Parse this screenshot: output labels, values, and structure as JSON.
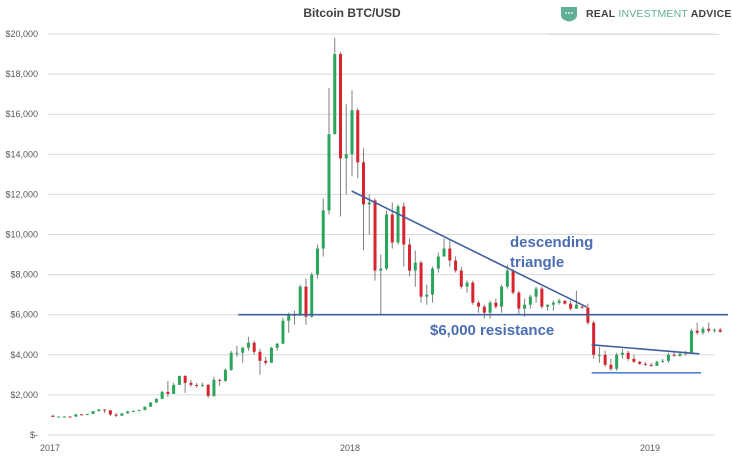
{
  "logo": {
    "text_part1": "REAL",
    "text_part2": "INVESTMENT",
    "text_part3": "ADVICE",
    "icon": "shield-icon"
  },
  "colors": {
    "up": "#2aa55c",
    "down": "#d9232e",
    "wick": "#7f7f7f",
    "annotation": "#4a6db3",
    "grid": "#d9d9d9"
  },
  "chart_data": {
    "type": "candlestick",
    "title": "Bitcoin BTC/USD",
    "ylim": [
      0,
      20000
    ],
    "y_ticks": [
      0,
      2000,
      4000,
      6000,
      8000,
      10000,
      12000,
      14000,
      16000,
      18000,
      20000
    ],
    "y_tick_labels": [
      "$-",
      "$2,000",
      "$4,000",
      "$6,000",
      "$8,000",
      "$10,000",
      "$12,000",
      "$14,000",
      "$16,000",
      "$18,000",
      "$20,000"
    ],
    "x_ticks": [
      "2017-01-01",
      "2018-01-01",
      "2019-01-01"
    ],
    "x_tick_labels": [
      "2017",
      "2018",
      "2019"
    ],
    "grid": "horizontal",
    "candle_fields": [
      "week",
      "open",
      "high",
      "low",
      "close"
    ],
    "candles": [
      [
        "2017-01-02",
        960,
        1010,
        900,
        905
      ],
      [
        "2017-01-09",
        905,
        930,
        880,
        920
      ],
      [
        "2017-01-16",
        920,
        940,
        890,
        920
      ],
      [
        "2017-01-23",
        920,
        930,
        900,
        915
      ],
      [
        "2017-01-30",
        915,
        1040,
        915,
        1030
      ],
      [
        "2017-02-06",
        1030,
        1060,
        990,
        1000
      ],
      [
        "2017-02-13",
        1000,
        1060,
        990,
        1050
      ],
      [
        "2017-02-20",
        1050,
        1200,
        1050,
        1190
      ],
      [
        "2017-02-27",
        1190,
        1290,
        1180,
        1270
      ],
      [
        "2017-03-06",
        1270,
        1280,
        1100,
        1230
      ],
      [
        "2017-03-13",
        1230,
        1250,
        950,
        1020
      ],
      [
        "2017-03-20",
        1020,
        1100,
        890,
        960
      ],
      [
        "2017-03-27",
        960,
        1090,
        960,
        1080
      ],
      [
        "2017-04-03",
        1080,
        1200,
        1060,
        1180
      ],
      [
        "2017-04-10",
        1180,
        1220,
        1160,
        1200
      ],
      [
        "2017-04-17",
        1200,
        1260,
        1190,
        1240
      ],
      [
        "2017-04-24",
        1240,
        1420,
        1240,
        1410
      ],
      [
        "2017-05-01",
        1410,
        1640,
        1400,
        1620
      ],
      [
        "2017-05-08",
        1620,
        1850,
        1600,
        1800
      ],
      [
        "2017-05-15",
        1800,
        2200,
        1790,
        2150
      ],
      [
        "2017-05-22",
        2150,
        2700,
        1900,
        2050
      ],
      [
        "2017-05-29",
        2050,
        2600,
        2050,
        2500
      ],
      [
        "2017-06-05",
        2500,
        2950,
        2500,
        2950
      ],
      [
        "2017-06-12",
        2950,
        2980,
        2100,
        2600
      ],
      [
        "2017-06-19",
        2600,
        2750,
        2400,
        2500
      ],
      [
        "2017-06-26",
        2500,
        2600,
        2350,
        2450
      ],
      [
        "2017-07-03",
        2450,
        2600,
        2400,
        2500
      ],
      [
        "2017-07-10",
        2500,
        2550,
        1850,
        1950
      ],
      [
        "2017-07-17",
        1950,
        2900,
        1900,
        2750
      ],
      [
        "2017-07-24",
        2750,
        2800,
        2450,
        2700
      ],
      [
        "2017-07-31",
        2700,
        3300,
        2650,
        3250
      ],
      [
        "2017-08-07",
        3250,
        4200,
        3200,
        4100
      ],
      [
        "2017-08-14",
        4100,
        4450,
        3900,
        4100
      ],
      [
        "2017-08-21",
        4100,
        4400,
        3600,
        4350
      ],
      [
        "2017-08-28",
        4350,
        4900,
        4200,
        4600
      ],
      [
        "2017-09-04",
        4600,
        4700,
        4000,
        4150
      ],
      [
        "2017-09-11",
        4150,
        4300,
        3000,
        3700
      ],
      [
        "2017-09-18",
        3700,
        3900,
        3500,
        3600
      ],
      [
        "2017-09-25",
        3600,
        4400,
        3600,
        4350
      ],
      [
        "2017-10-02",
        4350,
        4600,
        4200,
        4550
      ],
      [
        "2017-10-09",
        4550,
        5850,
        4550,
        5700
      ],
      [
        "2017-10-16",
        5700,
        6100,
        5100,
        6000
      ],
      [
        "2017-10-23",
        6000,
        6200,
        5500,
        5950
      ],
      [
        "2017-10-30",
        5950,
        7500,
        5950,
        7400
      ],
      [
        "2017-11-06",
        7400,
        7800,
        5500,
        5900
      ],
      [
        "2017-11-13",
        5900,
        8100,
        5850,
        8000
      ],
      [
        "2017-11-20",
        8000,
        9500,
        7800,
        9300
      ],
      [
        "2017-11-27",
        9300,
        11800,
        8900,
        11200
      ],
      [
        "2017-12-04",
        11200,
        17300,
        11000,
        15000
      ],
      [
        "2017-12-11",
        15000,
        19800,
        15000,
        19000
      ],
      [
        "2017-12-18",
        19000,
        19100,
        10900,
        13800
      ],
      [
        "2017-12-25",
        13800,
        16500,
        12000,
        14000
      ],
      [
        "2018-01-01",
        14000,
        17200,
        12900,
        16200
      ],
      [
        "2018-01-08",
        16200,
        16300,
        12800,
        13600
      ],
      [
        "2018-01-15",
        13600,
        14300,
        9200,
        11500
      ],
      [
        "2018-01-22",
        11500,
        12000,
        10000,
        11600
      ],
      [
        "2018-01-29",
        11700,
        11800,
        7700,
        8200
      ],
      [
        "2018-02-05",
        8200,
        9000,
        6000,
        8300
      ],
      [
        "2018-02-12",
        8300,
        11200,
        8200,
        11000
      ],
      [
        "2018-02-19",
        11000,
        11600,
        9300,
        9600
      ],
      [
        "2018-02-26",
        9600,
        11500,
        9500,
        11400
      ],
      [
        "2018-03-05",
        11400,
        11600,
        8400,
        9500
      ],
      [
        "2018-03-12",
        9500,
        9800,
        7900,
        8200
      ],
      [
        "2018-03-19",
        8200,
        9200,
        7400,
        8600
      ],
      [
        "2018-03-26",
        8600,
        8700,
        6600,
        6900
      ],
      [
        "2018-04-02",
        6900,
        7500,
        6500,
        7000
      ],
      [
        "2018-04-09",
        7000,
        8400,
        6600,
        8300
      ],
      [
        "2018-04-16",
        8300,
        9100,
        8100,
        8900
      ],
      [
        "2018-04-23",
        8900,
        9800,
        8900,
        9300
      ],
      [
        "2018-04-30",
        9300,
        9700,
        8400,
        8700
      ],
      [
        "2018-05-07",
        8700,
        8900,
        8100,
        8200
      ],
      [
        "2018-05-14",
        8200,
        8400,
        7300,
        7400
      ],
      [
        "2018-05-21",
        7400,
        7700,
        7100,
        7600
      ],
      [
        "2018-05-28",
        7600,
        7700,
        6500,
        6600
      ],
      [
        "2018-06-04",
        6600,
        6700,
        6100,
        6400
      ],
      [
        "2018-06-11",
        6400,
        6500,
        5800,
        6100
      ],
      [
        "2018-06-18",
        6100,
        6700,
        5800,
        6600
      ],
      [
        "2018-06-25",
        6600,
        6800,
        6300,
        6400
      ],
      [
        "2018-07-02",
        6400,
        7500,
        6100,
        7400
      ],
      [
        "2018-07-09",
        7400,
        8500,
        7300,
        8200
      ],
      [
        "2018-07-16",
        8200,
        8300,
        7000,
        7100
      ],
      [
        "2018-07-23",
        7100,
        7200,
        6000,
        6300
      ],
      [
        "2018-07-30",
        6300,
        6800,
        5900,
        6500
      ],
      [
        "2018-08-06",
        6500,
        7000,
        6300,
        6900
      ],
      [
        "2018-08-13",
        6900,
        7400,
        6600,
        7300
      ],
      [
        "2018-08-20",
        7300,
        7400,
        6300,
        6400
      ],
      [
        "2018-08-27",
        6400,
        6500,
        6200,
        6500
      ],
      [
        "2018-09-03",
        6500,
        6700,
        6200,
        6600
      ],
      [
        "2018-09-10",
        6600,
        6800,
        6500,
        6700
      ],
      [
        "2018-09-17",
        6700,
        6700,
        6500,
        6550
      ],
      [
        "2018-09-24",
        6550,
        6700,
        6200,
        6300
      ],
      [
        "2018-10-01",
        6300,
        7200,
        6300,
        6500
      ],
      [
        "2018-10-08",
        6400,
        6500,
        6300,
        6350
      ],
      [
        "2018-10-15",
        6350,
        6550,
        5500,
        5600
      ],
      [
        "2018-10-22",
        5600,
        5700,
        3800,
        4000
      ],
      [
        "2018-10-29",
        4000,
        4400,
        3600,
        4000
      ],
      [
        "2018-11-05",
        4000,
        4200,
        3400,
        3500
      ],
      [
        "2018-11-12",
        3500,
        3800,
        3200,
        3300
      ],
      [
        "2018-11-19",
        3300,
        4100,
        3200,
        4000
      ],
      [
        "2018-11-26",
        4000,
        4300,
        3800,
        4100
      ],
      [
        "2018-12-03",
        4100,
        4200,
        3700,
        3800
      ],
      [
        "2018-12-10",
        3800,
        4000,
        3600,
        3650
      ],
      [
        "2018-12-17",
        3650,
        3700,
        3500,
        3550
      ],
      [
        "2018-12-24",
        3550,
        3650,
        3450,
        3500
      ],
      [
        "2018-12-31",
        3500,
        3600,
        3400,
        3450
      ],
      [
        "2019-01-07",
        3450,
        3700,
        3450,
        3650
      ],
      [
        "2019-01-14",
        3650,
        3800,
        3600,
        3700
      ],
      [
        "2019-01-21",
        3700,
        4100,
        3600,
        4000
      ],
      [
        "2019-01-28",
        4000,
        4200,
        3900,
        3950
      ],
      [
        "2019-02-04",
        3950,
        4100,
        3900,
        4050
      ],
      [
        "2019-02-11",
        4050,
        4200,
        3950,
        4100
      ],
      [
        "2019-02-18",
        4100,
        5300,
        4050,
        5200
      ],
      [
        "2019-02-25",
        5200,
        5600,
        5000,
        5100
      ],
      [
        "2019-03-04",
        5100,
        5400,
        5000,
        5300
      ],
      [
        "2019-03-11",
        5300,
        5600,
        5100,
        5200
      ],
      [
        "2019-03-18",
        5200,
        5300,
        5100,
        5250
      ],
      [
        "2019-03-25",
        5250,
        5350,
        5100,
        5150
      ]
    ],
    "annotations": {
      "descending_label_line1": "descending",
      "descending_label_line2": "triangle",
      "resistance_label": "$6,000 resistance",
      "lines": [
        {
          "name": "descending-trendline",
          "from": [
            "2018-01-03",
            12170
          ],
          "to": [
            "2018-10-16",
            6380
          ]
        },
        {
          "name": "resistance-line",
          "from": [
            "2017-08-18",
            6000
          ],
          "to": [
            "2019-04-06",
            6000
          ]
        },
        {
          "name": "small-triangle-top",
          "from": [
            "2018-10-22",
            4500
          ],
          "to": [
            "2019-03-02",
            4050
          ]
        },
        {
          "name": "small-triangle-bottom",
          "from": [
            "2018-10-22",
            3100
          ],
          "to": [
            "2019-03-04",
            3100
          ]
        }
      ]
    }
  }
}
